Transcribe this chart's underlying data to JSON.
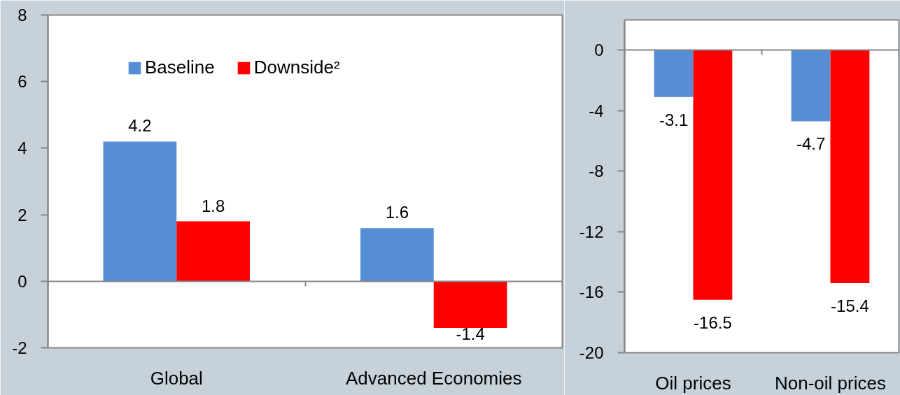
{
  "chart_data": [
    {
      "type": "bar",
      "categories": [
        "Global",
        "Advanced Economies"
      ],
      "series": [
        {
          "name": "Baseline",
          "color": "#558ed5",
          "values": [
            4.2,
            1.6
          ]
        },
        {
          "name": "Downside²",
          "color": "#ff0000",
          "values": [
            1.8,
            -1.4
          ]
        }
      ],
      "ylim": [
        -2,
        8
      ],
      "yticks": [
        -2,
        0,
        2,
        4,
        6,
        8
      ],
      "data_labels": true,
      "legend": "top left"
    },
    {
      "type": "bar",
      "categories": [
        "Oil prices",
        "Non-oil prices"
      ],
      "series": [
        {
          "color": "#558ed5",
          "values": [
            -3.1,
            -4.7
          ]
        },
        {
          "color": "#ff0000",
          "values": [
            -16.5,
            -15.4
          ]
        }
      ],
      "ylim": [
        -20,
        2
      ],
      "yticks": [
        -20,
        -16,
        -12,
        -8,
        -4,
        0
      ],
      "data_labels": true
    }
  ]
}
